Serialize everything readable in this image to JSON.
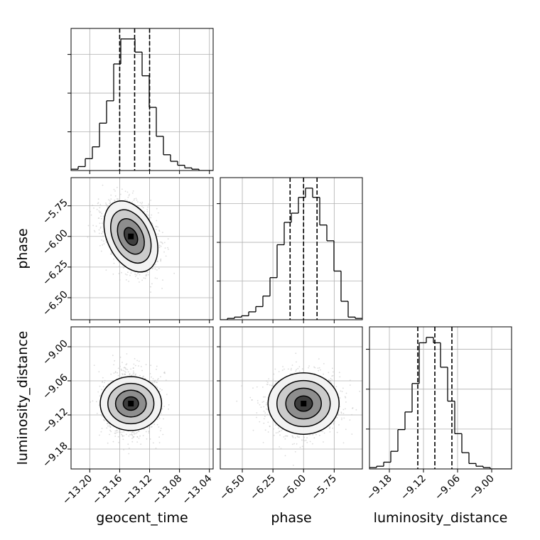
{
  "chart_data": {
    "type": "corner",
    "grid": true,
    "parameters": [
      "geocent_time",
      "phase",
      "luminosity_distance"
    ],
    "quantile_lines": "dashed (16%, 50%, 84%)",
    "colors": {
      "line": "#000000",
      "grid": "#b0b0b0",
      "samples": "#bdbdbd",
      "contour_fill": [
        "#f2f2f2",
        "#c8c8c8",
        "#8a8a8a",
        "#3a3a3a"
      ]
    },
    "axes": {
      "geocent_time": {
        "label": "geocent_time",
        "range": [
          -13.225,
          -13.035
        ],
        "ticks": [
          -13.2,
          -13.16,
          -13.12,
          -13.08,
          -13.04
        ],
        "tick_labels": [
          "−13.20",
          "−13.16",
          "−13.12",
          "−13.08",
          "−13.04"
        ]
      },
      "phase": {
        "label": "phase",
        "range": [
          -6.68,
          -5.52
        ],
        "ticks": [
          -6.5,
          -6.25,
          -6.0,
          -5.75
        ],
        "tick_labels": [
          "−6.50",
          "−6.25",
          "−6.00",
          "−5.75"
        ]
      },
      "luminosity_distance": {
        "label": "luminosity_distance",
        "range": [
          -9.215,
          -8.965
        ],
        "ticks": [
          -9.18,
          -9.12,
          -9.06,
          -9.0
        ],
        "tick_labels": [
          "−9.18",
          "−9.12",
          "−9.06",
          "−9.00"
        ]
      }
    },
    "histograms": [
      {
        "parameter": "geocent_time",
        "bin_edges": [
          -13.225,
          -13.2155,
          -13.206,
          -13.1965,
          -13.187,
          -13.1775,
          -13.168,
          -13.1585,
          -13.149,
          -13.1395,
          -13.13,
          -13.1205,
          -13.111,
          -13.1015,
          -13.092,
          -13.0825,
          -13.073,
          -13.0635,
          -13.054,
          -13.0445,
          -13.035
        ],
        "counts": [
          1,
          3,
          9,
          18,
          36,
          53,
          81,
          100,
          100,
          90,
          72,
          48,
          26,
          12,
          7,
          4,
          2,
          1,
          0,
          0
        ],
        "quantiles": [
          -13.16,
          -13.14,
          -13.12
        ]
      },
      {
        "parameter": "phase",
        "bin_edges": [
          -6.68,
          -6.622,
          -6.564,
          -6.506,
          -6.448,
          -6.39,
          -6.332,
          -6.274,
          -6.216,
          -6.158,
          -6.1,
          -6.042,
          -5.984,
          -5.926,
          -5.868,
          -5.81,
          -5.752,
          -5.694,
          -5.636,
          -5.578,
          -5.52
        ],
        "counts": [
          0,
          1,
          2,
          3,
          6,
          10,
          18,
          32,
          57,
          74,
          81,
          93,
          100,
          93,
          72,
          60,
          37,
          14,
          2,
          1
        ],
        "quantiles": [
          -6.11,
          -6.0,
          -5.89
        ]
      },
      {
        "parameter": "luminosity_distance",
        "bin_edges": [
          -9.215,
          -9.2025,
          -9.19,
          -9.1775,
          -9.165,
          -9.1525,
          -9.14,
          -9.1275,
          -9.115,
          -9.1025,
          -9.09,
          -9.0775,
          -9.065,
          -9.0525,
          -9.04,
          -9.0275,
          -9.015,
          -9.0025,
          -8.99,
          -8.9775,
          -8.965
        ],
        "counts": [
          1,
          2,
          5,
          13,
          29,
          42,
          63,
          93,
          97,
          93,
          75,
          50,
          26,
          12,
          4,
          2,
          1,
          0,
          0,
          0
        ],
        "quantiles": [
          -9.13,
          -9.1,
          -9.07
        ]
      }
    ],
    "pairs": [
      {
        "x": "geocent_time",
        "y": "phase",
        "center": [
          -13.145,
          -6.0
        ],
        "spread": [
          0.018,
          0.145
        ],
        "correlation": -0.35,
        "contour_levels": [
          0.5,
          1.0,
          1.5,
          2.0
        ]
      },
      {
        "x": "geocent_time",
        "y": "luminosity_distance",
        "center": [
          -13.145,
          -9.1
        ],
        "spread": [
          0.018,
          0.027
        ],
        "correlation": 0.0,
        "contour_levels": [
          0.5,
          1.0,
          1.5,
          2.0
        ]
      },
      {
        "x": "phase",
        "y": "luminosity_distance",
        "center": [
          -6.0,
          -9.1
        ],
        "spread": [
          0.145,
          0.027
        ],
        "correlation": 0.0,
        "contour_levels": [
          0.5,
          1.0,
          1.5,
          2.0
        ]
      }
    ]
  }
}
